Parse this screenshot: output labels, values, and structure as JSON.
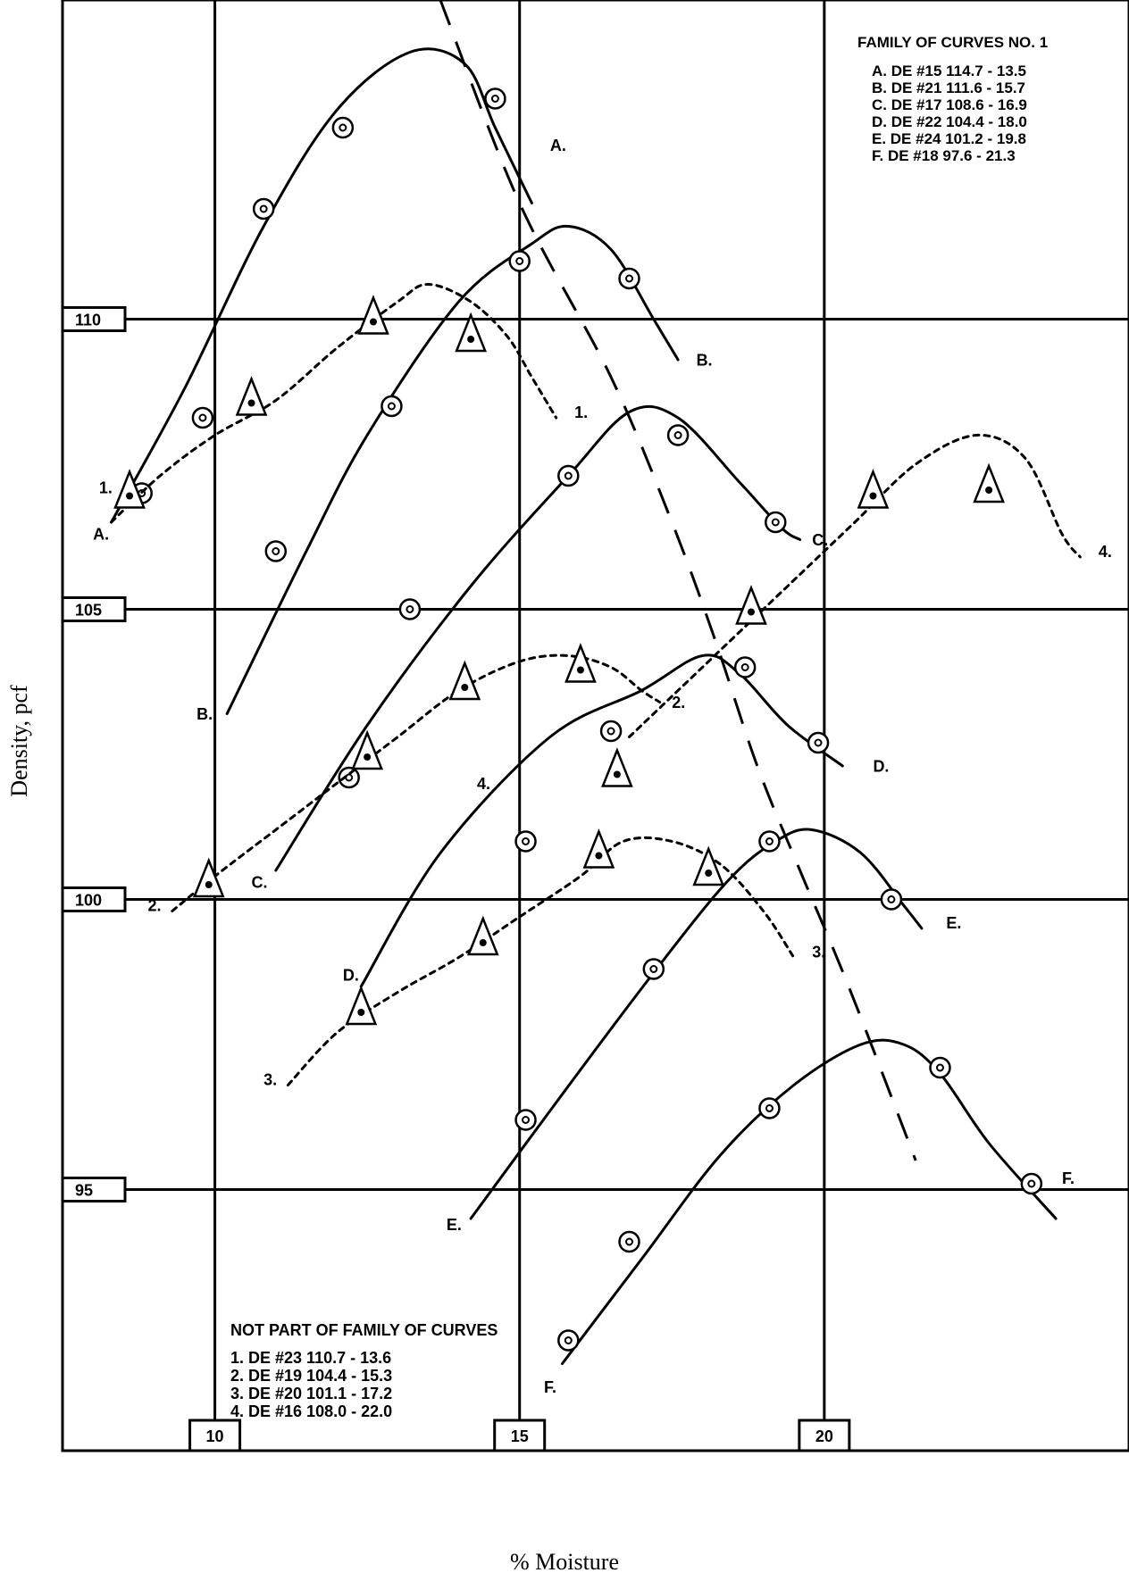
{
  "chart_data": {
    "type": "line",
    "xlabel": "% Moisture",
    "ylabel": "Density, pcf",
    "xlim": [
      7.5,
      25
    ],
    "ylim": [
      90.5,
      115.5
    ],
    "x_ticks": [
      10,
      15,
      20
    ],
    "y_ticks": [
      95,
      100,
      105,
      110
    ],
    "grid": true,
    "family_legend": {
      "title": "FAMILY OF CURVES NO. 1",
      "entries": [
        "A. DE #15 114.7 - 13.5",
        "B. DE #21 111.6 - 15.7",
        "C. DE #17 108.6 - 16.9",
        "D. DE #22 104.4 - 18.0",
        "E. DE #24 101.2 - 19.8",
        "F. DE #18 97.6 - 21.3"
      ]
    },
    "other_legend": {
      "title": "NOT PART OF FAMILY OF CURVES",
      "entries": [
        "1. DE #23 110.7 - 13.6",
        "2. DE #19 104.4 - 15.3",
        "3. DE #20 101.1 - 17.2",
        "4. DE #16 108.0 - 22.0"
      ]
    },
    "series": [
      {
        "name": "A.",
        "style": "solid",
        "marker": "circle",
        "line": [
          [
            8.3,
            106.5
          ],
          [
            9.5,
            108.8
          ],
          [
            10.8,
            111.6
          ],
          [
            12.0,
            113.6
          ],
          [
            13.2,
            114.6
          ],
          [
            14.1,
            114.4
          ],
          [
            14.6,
            113.3
          ],
          [
            15.2,
            112.0
          ]
        ],
        "points": [
          [
            8.8,
            107.0
          ],
          [
            9.8,
            108.3
          ],
          [
            10.8,
            111.9
          ],
          [
            12.1,
            113.3
          ],
          [
            14.6,
            113.8
          ]
        ],
        "label_at": [
          8.0,
          106.2
        ],
        "end_label_at": [
          15.5,
          112.9
        ]
      },
      {
        "name": "B.",
        "style": "solid",
        "marker": "circle",
        "line": [
          [
            10.2,
            103.2
          ],
          [
            11.5,
            106.0
          ],
          [
            12.5,
            108.0
          ],
          [
            14.0,
            110.3
          ],
          [
            15.2,
            111.3
          ],
          [
            15.8,
            111.6
          ],
          [
            16.5,
            111.2
          ],
          [
            17.2,
            110.0
          ],
          [
            17.6,
            109.3
          ]
        ],
        "points": [
          [
            11.0,
            106.0
          ],
          [
            12.9,
            108.5
          ],
          [
            15.0,
            111.0
          ],
          [
            16.8,
            110.7
          ]
        ],
        "label_at": [
          9.7,
          103.1
        ],
        "end_label_at": [
          17.9,
          109.2
        ]
      },
      {
        "name": "C.",
        "style": "solid",
        "marker": "circle",
        "line": [
          [
            11.0,
            100.5
          ],
          [
            12.5,
            103.0
          ],
          [
            14.2,
            105.4
          ],
          [
            15.8,
            107.3
          ],
          [
            16.8,
            108.4
          ],
          [
            17.6,
            108.3
          ],
          [
            18.6,
            107.2
          ],
          [
            19.3,
            106.4
          ],
          [
            19.6,
            106.2
          ]
        ],
        "points": [
          [
            13.2,
            105.0
          ],
          [
            15.8,
            107.3
          ],
          [
            17.6,
            108.0
          ],
          [
            19.2,
            106.5
          ]
        ],
        "label_at": [
          10.6,
          100.2
        ],
        "end_label_at": [
          19.8,
          106.1
        ]
      },
      {
        "name": "D.",
        "style": "solid",
        "marker": "circle",
        "line": [
          [
            12.4,
            98.5
          ],
          [
            13.7,
            100.8
          ],
          [
            15.5,
            102.8
          ],
          [
            17.0,
            103.6
          ],
          [
            18.0,
            104.2
          ],
          [
            18.6,
            103.9
          ],
          [
            19.4,
            103.0
          ],
          [
            20.3,
            102.3
          ]
        ],
        "points": [
          [
            12.2,
            102.1
          ],
          [
            16.5,
            102.9
          ],
          [
            18.7,
            104.0
          ],
          [
            19.9,
            102.7
          ]
        ],
        "label_at": [
          12.1,
          98.6
        ],
        "end_label_at": [
          20.8,
          102.2
        ]
      },
      {
        "name": "E.",
        "style": "solid",
        "marker": "circle",
        "line": [
          [
            14.2,
            94.5
          ],
          [
            15.6,
            96.5
          ],
          [
            17.1,
            98.6
          ],
          [
            18.4,
            100.3
          ],
          [
            19.2,
            101.0
          ],
          [
            19.8,
            101.2
          ],
          [
            20.6,
            100.8
          ],
          [
            21.3,
            99.9
          ],
          [
            21.6,
            99.5
          ]
        ],
        "points": [
          [
            15.1,
            101.0
          ],
          [
            15.1,
            96.2
          ],
          [
            17.2,
            98.8
          ],
          [
            19.1,
            101.0
          ],
          [
            21.1,
            100.0
          ]
        ],
        "label_at": [
          13.8,
          94.3
        ],
        "end_label_at": [
          22.0,
          99.5
        ]
      },
      {
        "name": "F.",
        "style": "solid",
        "marker": "circle",
        "line": [
          [
            15.7,
            92.0
          ],
          [
            17.0,
            93.8
          ],
          [
            18.3,
            95.6
          ],
          [
            19.5,
            96.8
          ],
          [
            20.6,
            97.5
          ],
          [
            21.3,
            97.5
          ],
          [
            21.9,
            97.0
          ],
          [
            22.7,
            95.8
          ],
          [
            23.8,
            94.5
          ]
        ],
        "points": [
          [
            15.8,
            92.4
          ],
          [
            16.8,
            94.1
          ],
          [
            19.1,
            96.4
          ],
          [
            21.9,
            97.1
          ],
          [
            23.4,
            95.1
          ]
        ],
        "label_at": [
          15.4,
          91.5
        ],
        "end_label_at": [
          23.9,
          95.1
        ]
      },
      {
        "name": "1.",
        "style": "dotted",
        "marker": "triangle",
        "line": [
          [
            8.3,
            106.5
          ],
          [
            9.1,
            107.3
          ],
          [
            10.0,
            108.0
          ],
          [
            11.0,
            108.6
          ],
          [
            12.0,
            109.5
          ],
          [
            13.0,
            110.3
          ],
          [
            13.5,
            110.6
          ],
          [
            14.2,
            110.3
          ],
          [
            14.8,
            109.7
          ],
          [
            15.2,
            109.0
          ],
          [
            15.6,
            108.3
          ]
        ],
        "points": [
          [
            8.6,
            107.0
          ],
          [
            10.6,
            108.6
          ],
          [
            12.6,
            110.0
          ],
          [
            14.2,
            109.7
          ]
        ],
        "label_at": [
          8.1,
          107.0
        ],
        "end_label_at": [
          15.9,
          108.3
        ]
      },
      {
        "name": "2.",
        "style": "dotted",
        "marker": "triangle",
        "line": [
          [
            9.3,
            99.8
          ],
          [
            10.0,
            100.4
          ],
          [
            11.0,
            101.2
          ],
          [
            12.0,
            102.0
          ],
          [
            13.0,
            102.8
          ],
          [
            14.0,
            103.6
          ],
          [
            15.0,
            104.1
          ],
          [
            15.8,
            104.2
          ],
          [
            16.5,
            104.0
          ],
          [
            17.0,
            103.6
          ],
          [
            17.3,
            103.4
          ]
        ],
        "points": [
          [
            9.9,
            100.3
          ],
          [
            12.5,
            102.5
          ],
          [
            14.1,
            103.7
          ],
          [
            16.0,
            104.0
          ]
        ],
        "label_at": [
          8.9,
          99.8
        ],
        "end_label_at": [
          17.5,
          103.3
        ]
      },
      {
        "name": "3.",
        "style": "dotted",
        "marker": "triangle",
        "line": [
          [
            11.2,
            96.8
          ],
          [
            12.0,
            97.7
          ],
          [
            13.0,
            98.4
          ],
          [
            14.0,
            99.0
          ],
          [
            15.0,
            99.7
          ],
          [
            16.0,
            100.4
          ],
          [
            16.7,
            101.0
          ],
          [
            17.5,
            101.0
          ],
          [
            18.3,
            100.6
          ],
          [
            19.0,
            99.8
          ],
          [
            19.5,
            99.0
          ]
        ],
        "points": [
          [
            12.4,
            98.1
          ],
          [
            14.4,
            99.3
          ],
          [
            16.3,
            100.8
          ],
          [
            18.1,
            100.5
          ]
        ],
        "label_at": [
          10.8,
          96.8
        ],
        "end_label_at": [
          19.8,
          99.0
        ]
      },
      {
        "name": "4.",
        "style": "dotted",
        "marker": "triangle",
        "line": [
          [
            16.8,
            102.8
          ],
          [
            18.0,
            104.0
          ],
          [
            19.5,
            105.5
          ],
          [
            20.5,
            106.5
          ],
          [
            21.5,
            107.5
          ],
          [
            22.5,
            108.0
          ],
          [
            23.3,
            107.6
          ],
          [
            23.9,
            106.3
          ],
          [
            24.2,
            105.9
          ]
        ],
        "points": [
          [
            16.6,
            102.2
          ],
          [
            18.8,
            105.0
          ],
          [
            20.8,
            107.0
          ],
          [
            22.7,
            107.1
          ]
        ],
        "label_at": [
          14.3,
          101.9
        ],
        "end_label_at": [
          24.5,
          105.9
        ]
      },
      {
        "name": "",
        "style": "dashed",
        "marker": "none",
        "line": [
          [
            13.7,
            115.5
          ],
          [
            15.0,
            112.0
          ],
          [
            16.5,
            109.0
          ],
          [
            17.5,
            106.5
          ],
          [
            18.2,
            104.5
          ],
          [
            18.9,
            102.3
          ],
          [
            19.6,
            100.5
          ],
          [
            20.4,
            98.5
          ],
          [
            21.5,
            95.5
          ]
        ],
        "points": []
      }
    ]
  }
}
